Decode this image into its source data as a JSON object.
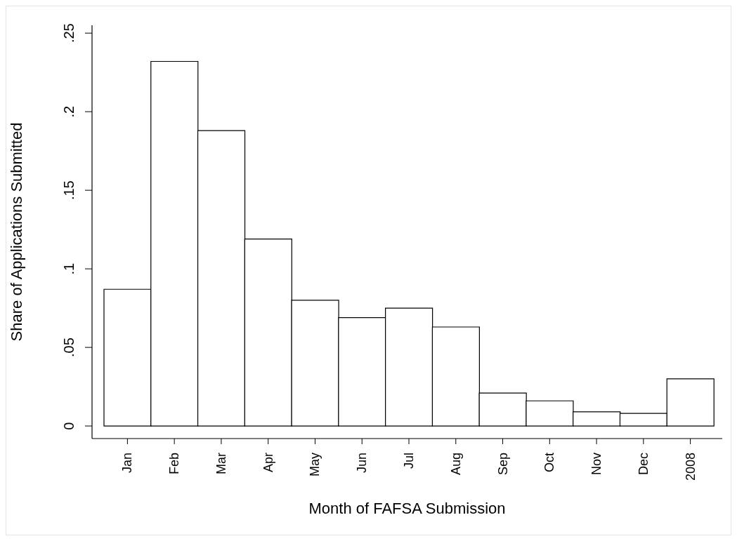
{
  "chart_data": {
    "type": "bar",
    "xlabel": "Month of FAFSA Submission",
    "ylabel": "Share of Applications Submitted",
    "categories": [
      "Jan",
      "Feb",
      "Mar",
      "Apr",
      "May",
      "Jun",
      "Jul",
      "Aug",
      "Sep",
      "Oct",
      "Nov",
      "Dec",
      "2008"
    ],
    "values": [
      0.087,
      0.232,
      0.188,
      0.119,
      0.08,
      0.069,
      0.075,
      0.063,
      0.021,
      0.016,
      0.009,
      0.008,
      0.03
    ],
    "color": "#ffffff",
    "ylim": [
      -0.008,
      0.255
    ],
    "yticks": [
      {
        "value": 0,
        "label": "0"
      },
      {
        "value": 0.05,
        "label": ".05"
      },
      {
        "value": 0.1,
        "label": ".1"
      },
      {
        "value": 0.15,
        "label": ".15"
      },
      {
        "value": 0.2,
        "label": ".2"
      },
      {
        "value": 0.25,
        "label": ".25"
      }
    ],
    "grid": false,
    "legend": false
  }
}
